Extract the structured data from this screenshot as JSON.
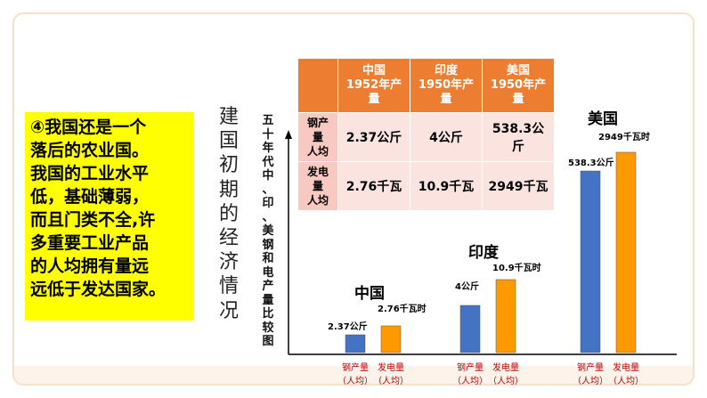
{
  "left_box": {
    "lines": [
      "④我国还是一个",
      "落后的农业国。",
      "我国的工业水平",
      "低，基础薄弱，",
      "而且门类不全,许",
      "多重要工业产品",
      "的人均拥有量远",
      "远低于发达国家。"
    ]
  },
  "vertical_title": [
    "建",
    "国",
    "初",
    "期",
    "的",
    "经",
    "济",
    "情",
    "况"
  ],
  "chart_vertical_label": [
    "五",
    "十",
    "年",
    "代",
    "中",
    "、",
    "印",
    "、",
    "美",
    "钢",
    "和",
    "电",
    "产",
    "量",
    "比",
    "较",
    "图"
  ],
  "table": {
    "headers": [
      "中国\n1952年产\n量",
      "印度\n1950年产\n量",
      "美国\n1950年产\n量"
    ],
    "header_lines": [
      [
        "中国",
        "1952年产",
        "量"
      ],
      [
        "印度",
        "1950年产",
        "量"
      ],
      [
        "美国",
        "1950年产",
        "量"
      ]
    ],
    "row_headers": [
      [
        "钢产",
        "量",
        "人均"
      ],
      [
        "发电",
        "量",
        "人均"
      ]
    ],
    "rows": [
      [
        "2.37公斤",
        "4公斤",
        "538.3公\n斤"
      ],
      [
        "2.76千瓦",
        "10.9千瓦",
        "2949千瓦"
      ]
    ],
    "row1_lines": [
      [
        "2.37公斤"
      ],
      [
        "4公斤"
      ],
      [
        "538.3公",
        "斤"
      ]
    ],
    "row2_lines": [
      [
        "2.76千瓦"
      ],
      [
        "10.9千瓦"
      ],
      [
        "2949千瓦"
      ]
    ]
  },
  "colors": {
    "steel": "#4472c4",
    "power": "#ff9900",
    "header": "#ed7d31",
    "highlight": "#ffff00"
  },
  "chart_data": {
    "type": "bar",
    "groups": [
      {
        "name": "中国",
        "steel_label": "2.37公斤",
        "power_label": "2.76千瓦时"
      },
      {
        "name": "印度",
        "steel_label": "4公斤",
        "power_label": "10.9千瓦时"
      },
      {
        "name": "美国",
        "steel_label": "538.3公斤",
        "power_label": "2949千瓦时"
      }
    ],
    "x_category_labels": [
      [
        "钢产量",
        "（人均）"
      ],
      [
        "发电量",
        "（人均）"
      ]
    ],
    "series": [
      {
        "name": "钢产量（人均）",
        "values": [
          2.37,
          4,
          538.3
        ]
      },
      {
        "name": "发电量（人均）",
        "values": [
          2.76,
          10.9,
          2949
        ]
      }
    ]
  }
}
